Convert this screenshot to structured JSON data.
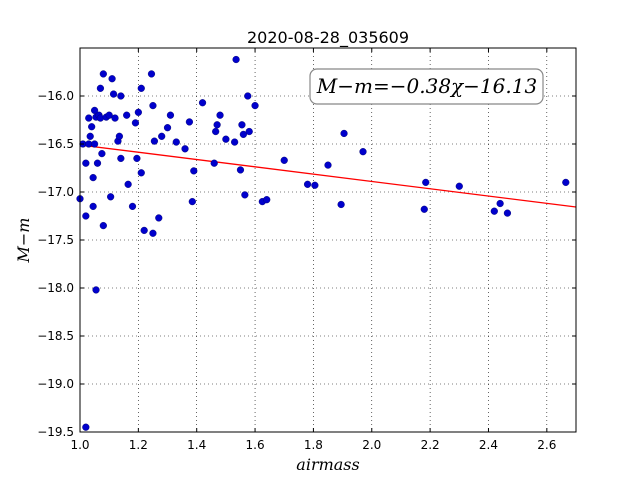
{
  "chart_data": {
    "type": "scatter",
    "title": "2020-08-28_035609",
    "xlabel": "airmass",
    "ylabel": "M−m",
    "xlim": [
      1.0,
      2.7
    ],
    "ylim": [
      -15.5,
      -19.5
    ],
    "y_inverted": true,
    "grid": true,
    "x_ticks": [
      "1.0",
      "1.2",
      "1.4",
      "1.6",
      "1.8",
      "2.0",
      "2.2",
      "2.4",
      "2.6"
    ],
    "y_ticks": [
      "−16.0",
      "−16.5",
      "−17.0",
      "−17.5",
      "−18.0",
      "−18.5",
      "−19.0",
      "−19.5"
    ],
    "marker_color": "#0000cc",
    "fit_color": "#ff0000",
    "annotation": "M−m=−0.38χ−16.13",
    "fit": {
      "slope": -0.38,
      "intercept": -16.13,
      "x": [
        1.0,
        2.7
      ]
    },
    "points": [
      [
        1.0,
        -17.07
      ],
      [
        1.01,
        -16.5
      ],
      [
        1.02,
        -16.7
      ],
      [
        1.02,
        -17.25
      ],
      [
        1.02,
        -19.45
      ],
      [
        1.03,
        -16.23
      ],
      [
        1.03,
        -16.5
      ],
      [
        1.035,
        -16.42
      ],
      [
        1.04,
        -16.32
      ],
      [
        1.045,
        -16.85
      ],
      [
        1.045,
        -17.15
      ],
      [
        1.05,
        -16.15
      ],
      [
        1.05,
        -16.5
      ],
      [
        1.055,
        -16.22
      ],
      [
        1.055,
        -18.02
      ],
      [
        1.06,
        -16.7
      ],
      [
        1.065,
        -16.2
      ],
      [
        1.07,
        -15.92
      ],
      [
        1.07,
        -16.23
      ],
      [
        1.075,
        -16.6
      ],
      [
        1.08,
        -15.77
      ],
      [
        1.08,
        -17.35
      ],
      [
        1.09,
        -16.22
      ],
      [
        1.1,
        -16.2
      ],
      [
        1.105,
        -17.05
      ],
      [
        1.11,
        -15.82
      ],
      [
        1.115,
        -15.98
      ],
      [
        1.12,
        -16.23
      ],
      [
        1.13,
        -16.47
      ],
      [
        1.135,
        -16.42
      ],
      [
        1.14,
        -16.65
      ],
      [
        1.14,
        -16.0
      ],
      [
        1.16,
        -16.2
      ],
      [
        1.165,
        -16.92
      ],
      [
        1.18,
        -17.15
      ],
      [
        1.19,
        -16.28
      ],
      [
        1.195,
        -16.65
      ],
      [
        1.2,
        -16.17
      ],
      [
        1.21,
        -15.92
      ],
      [
        1.21,
        -16.8
      ],
      [
        1.22,
        -17.4
      ],
      [
        1.245,
        -15.77
      ],
      [
        1.25,
        -16.1
      ],
      [
        1.25,
        -17.43
      ],
      [
        1.255,
        -16.47
      ],
      [
        1.27,
        -17.27
      ],
      [
        1.28,
        -16.42
      ],
      [
        1.3,
        -16.33
      ],
      [
        1.31,
        -16.2
      ],
      [
        1.33,
        -16.48
      ],
      [
        1.36,
        -16.55
      ],
      [
        1.375,
        -16.27
      ],
      [
        1.385,
        -17.1
      ],
      [
        1.39,
        -16.78
      ],
      [
        1.42,
        -16.07
      ],
      [
        1.46,
        -16.7
      ],
      [
        1.465,
        -16.37
      ],
      [
        1.47,
        -16.3
      ],
      [
        1.48,
        -16.2
      ],
      [
        1.5,
        -16.45
      ],
      [
        1.53,
        -16.48
      ],
      [
        1.535,
        -15.62
      ],
      [
        1.55,
        -16.77
      ],
      [
        1.555,
        -16.3
      ],
      [
        1.56,
        -16.4
      ],
      [
        1.565,
        -17.03
      ],
      [
        1.575,
        -16.0
      ],
      [
        1.58,
        -16.37
      ],
      [
        1.6,
        -16.1
      ],
      [
        1.625,
        -17.1
      ],
      [
        1.64,
        -17.08
      ],
      [
        1.7,
        -16.67
      ],
      [
        1.78,
        -16.92
      ],
      [
        1.805,
        -16.93
      ],
      [
        1.85,
        -16.72
      ],
      [
        1.895,
        -17.13
      ],
      [
        1.905,
        -16.39
      ],
      [
        1.97,
        -16.58
      ],
      [
        2.18,
        -17.18
      ],
      [
        2.185,
        -16.9
      ],
      [
        2.3,
        -16.94
      ],
      [
        2.42,
        -17.2
      ],
      [
        2.44,
        -17.12
      ],
      [
        2.465,
        -17.22
      ],
      [
        2.665,
        -16.9
      ]
    ]
  }
}
